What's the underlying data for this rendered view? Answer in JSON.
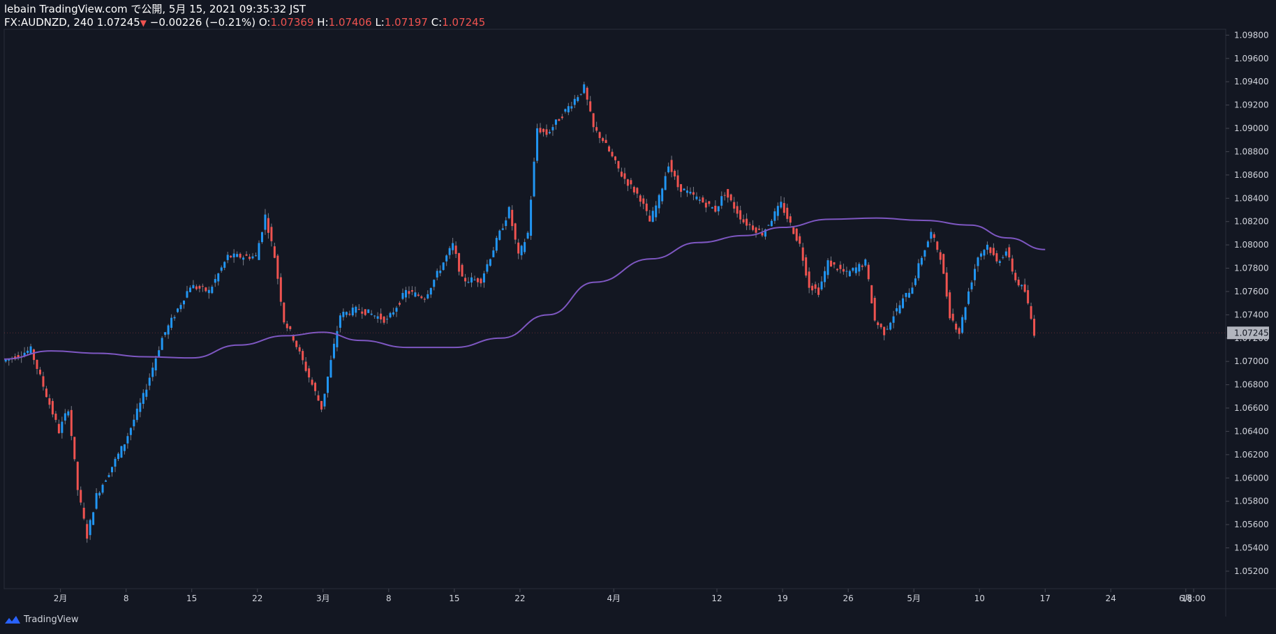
{
  "header": {
    "publisher_line": "lebain TradingView.com で公開, 5月 15, 2021 09:35:32 JST",
    "symbol_prefix": "FX:AUDNZD, 240",
    "last": "1.07245",
    "change_arrow": "▼",
    "change": "−0.00226 (−0.21%)",
    "open_label": "O:",
    "open": "1.07369",
    "high_label": "H:",
    "high": "1.07406",
    "low_label": "L:",
    "low": "1.07197",
    "close_label": "C:",
    "close": "1.07245"
  },
  "footer": {
    "brand": "TradingView"
  },
  "colors": {
    "background": "#131722",
    "up": "#2196f3",
    "down": "#ef5350",
    "ma": "#7e57c2",
    "price_tag_bg": "#b2b5be",
    "axis_text": "#d1d4dc"
  },
  "chart_data": {
    "type": "candlestick",
    "symbol": "FX:AUDNZD",
    "interval": "240",
    "y_range": [
      1.0505,
      1.0985
    ],
    "y_ticks": [
      "1.05200",
      "1.05400",
      "1.05600",
      "1.05800",
      "1.06000",
      "1.06200",
      "1.06400",
      "1.06600",
      "1.06800",
      "1.07000",
      "1.07200",
      "1.07400",
      "1.07600",
      "1.07800",
      "1.08000",
      "1.08200",
      "1.08400",
      "1.08600",
      "1.08800",
      "1.09000",
      "1.09200",
      "1.09400",
      "1.09600",
      "1.09800"
    ],
    "last_price": "1.07245",
    "x_ticks": [
      "2月",
      "8",
      "15",
      "22",
      "3月",
      "8",
      "15",
      "22",
      "4月",
      "12",
      "19",
      "26",
      "5月",
      "10",
      "17",
      "24",
      "6月",
      "18:00"
    ],
    "price_path": [
      {
        "date": "2021-01-26",
        "value": 1.07
      },
      {
        "date": "2021-01-29",
        "value": 1.071
      },
      {
        "date": "2021-02-01",
        "value": 1.064
      },
      {
        "date": "2021-02-02",
        "value": 1.066
      },
      {
        "date": "2021-02-03",
        "value": 1.059
      },
      {
        "date": "2021-02-04",
        "value": 1.055
      },
      {
        "date": "2021-02-05",
        "value": 1.0585
      },
      {
        "date": "2021-02-08",
        "value": 1.063
      },
      {
        "date": "2021-02-10",
        "value": 1.067
      },
      {
        "date": "2021-02-12",
        "value": 1.072
      },
      {
        "date": "2021-02-15",
        "value": 1.0765
      },
      {
        "date": "2021-02-17",
        "value": 1.076
      },
      {
        "date": "2021-02-19",
        "value": 1.079
      },
      {
        "date": "2021-02-22",
        "value": 1.079
      },
      {
        "date": "2021-02-23",
        "value": 1.0825
      },
      {
        "date": "2021-02-24",
        "value": 1.079
      },
      {
        "date": "2021-02-25",
        "value": 1.0735
      },
      {
        "date": "2021-02-26",
        "value": 1.072
      },
      {
        "date": "2021-03-01",
        "value": 1.066
      },
      {
        "date": "2021-03-02",
        "value": 1.07
      },
      {
        "date": "2021-03-03",
        "value": 1.074
      },
      {
        "date": "2021-03-05",
        "value": 1.0745
      },
      {
        "date": "2021-03-08",
        "value": 1.0735
      },
      {
        "date": "2021-03-10",
        "value": 1.076
      },
      {
        "date": "2021-03-12",
        "value": 1.0755
      },
      {
        "date": "2021-03-15",
        "value": 1.08
      },
      {
        "date": "2021-03-16",
        "value": 1.077
      },
      {
        "date": "2021-03-18",
        "value": 1.077
      },
      {
        "date": "2021-03-19",
        "value": 1.079
      },
      {
        "date": "2021-03-21",
        "value": 1.083
      },
      {
        "date": "2021-03-22",
        "value": 1.079
      },
      {
        "date": "2021-03-23",
        "value": 1.081
      },
      {
        "date": "2021-03-24",
        "value": 1.09
      },
      {
        "date": "2021-03-25",
        "value": 1.0895
      },
      {
        "date": "2021-03-26",
        "value": 1.0905
      },
      {
        "date": "2021-03-29",
        "value": 1.0935
      },
      {
        "date": "2021-03-30",
        "value": 1.09
      },
      {
        "date": "2021-03-31",
        "value": 1.089
      },
      {
        "date": "2021-04-02",
        "value": 1.086
      },
      {
        "date": "2021-04-04",
        "value": 1.084
      },
      {
        "date": "2021-04-05",
        "value": 1.082
      },
      {
        "date": "2021-04-06",
        "value": 1.084
      },
      {
        "date": "2021-04-07",
        "value": 1.087
      },
      {
        "date": "2021-04-08",
        "value": 1.085
      },
      {
        "date": "2021-04-10",
        "value": 1.084
      },
      {
        "date": "2021-04-12",
        "value": 1.083
      },
      {
        "date": "2021-04-13",
        "value": 1.0845
      },
      {
        "date": "2021-04-15",
        "value": 1.082
      },
      {
        "date": "2021-04-17",
        "value": 1.081
      },
      {
        "date": "2021-04-19",
        "value": 1.0835
      },
      {
        "date": "2021-04-21",
        "value": 1.08
      },
      {
        "date": "2021-04-22",
        "value": 1.0765
      },
      {
        "date": "2021-04-23",
        "value": 1.076
      },
      {
        "date": "2021-04-24",
        "value": 1.0785
      },
      {
        "date": "2021-04-26",
        "value": 1.0775
      },
      {
        "date": "2021-04-28",
        "value": 1.0785
      },
      {
        "date": "2021-04-29",
        "value": 1.0735
      },
      {
        "date": "2021-04-30",
        "value": 1.0725
      },
      {
        "date": "2021-05-01",
        "value": 1.074
      },
      {
        "date": "2021-05-03",
        "value": 1.0765
      },
      {
        "date": "2021-05-04",
        "value": 1.079
      },
      {
        "date": "2021-05-05",
        "value": 1.081
      },
      {
        "date": "2021-05-06",
        "value": 1.079
      },
      {
        "date": "2021-05-07",
        "value": 1.074
      },
      {
        "date": "2021-05-08",
        "value": 1.0725
      },
      {
        "date": "2021-05-09",
        "value": 1.076
      },
      {
        "date": "2021-05-10",
        "value": 1.079
      },
      {
        "date": "2021-05-11",
        "value": 1.08
      },
      {
        "date": "2021-05-12",
        "value": 1.0785
      },
      {
        "date": "2021-05-13",
        "value": 1.0795
      },
      {
        "date": "2021-05-14",
        "value": 1.077
      },
      {
        "date": "2021-05-15",
        "value": 1.076
      },
      {
        "date": "2021-05-16",
        "value": 1.07245
      }
    ],
    "moving_average": [
      {
        "date": "2021-01-26",
        "value": 1.0702
      },
      {
        "date": "2021-01-31",
        "value": 1.0709
      },
      {
        "date": "2021-02-05",
        "value": 1.0707
      },
      {
        "date": "2021-02-10",
        "value": 1.0704
      },
      {
        "date": "2021-02-15",
        "value": 1.0703
      },
      {
        "date": "2021-02-20",
        "value": 1.0714
      },
      {
        "date": "2021-02-25",
        "value": 1.0722
      },
      {
        "date": "2021-03-01",
        "value": 1.0725
      },
      {
        "date": "2021-03-05",
        "value": 1.0718
      },
      {
        "date": "2021-03-10",
        "value": 1.0712
      },
      {
        "date": "2021-03-15",
        "value": 1.0712
      },
      {
        "date": "2021-03-20",
        "value": 1.072
      },
      {
        "date": "2021-03-25",
        "value": 1.074
      },
      {
        "date": "2021-03-30",
        "value": 1.0768
      },
      {
        "date": "2021-04-05",
        "value": 1.0788
      },
      {
        "date": "2021-04-10",
        "value": 1.0802
      },
      {
        "date": "2021-04-15",
        "value": 1.0808
      },
      {
        "date": "2021-04-19",
        "value": 1.0815
      },
      {
        "date": "2021-04-24",
        "value": 1.0822
      },
      {
        "date": "2021-04-29",
        "value": 1.0823
      },
      {
        "date": "2021-05-04",
        "value": 1.0821
      },
      {
        "date": "2021-05-09",
        "value": 1.0817
      },
      {
        "date": "2021-05-13",
        "value": 1.0806
      },
      {
        "date": "2021-05-17",
        "value": 1.0796
      }
    ]
  }
}
